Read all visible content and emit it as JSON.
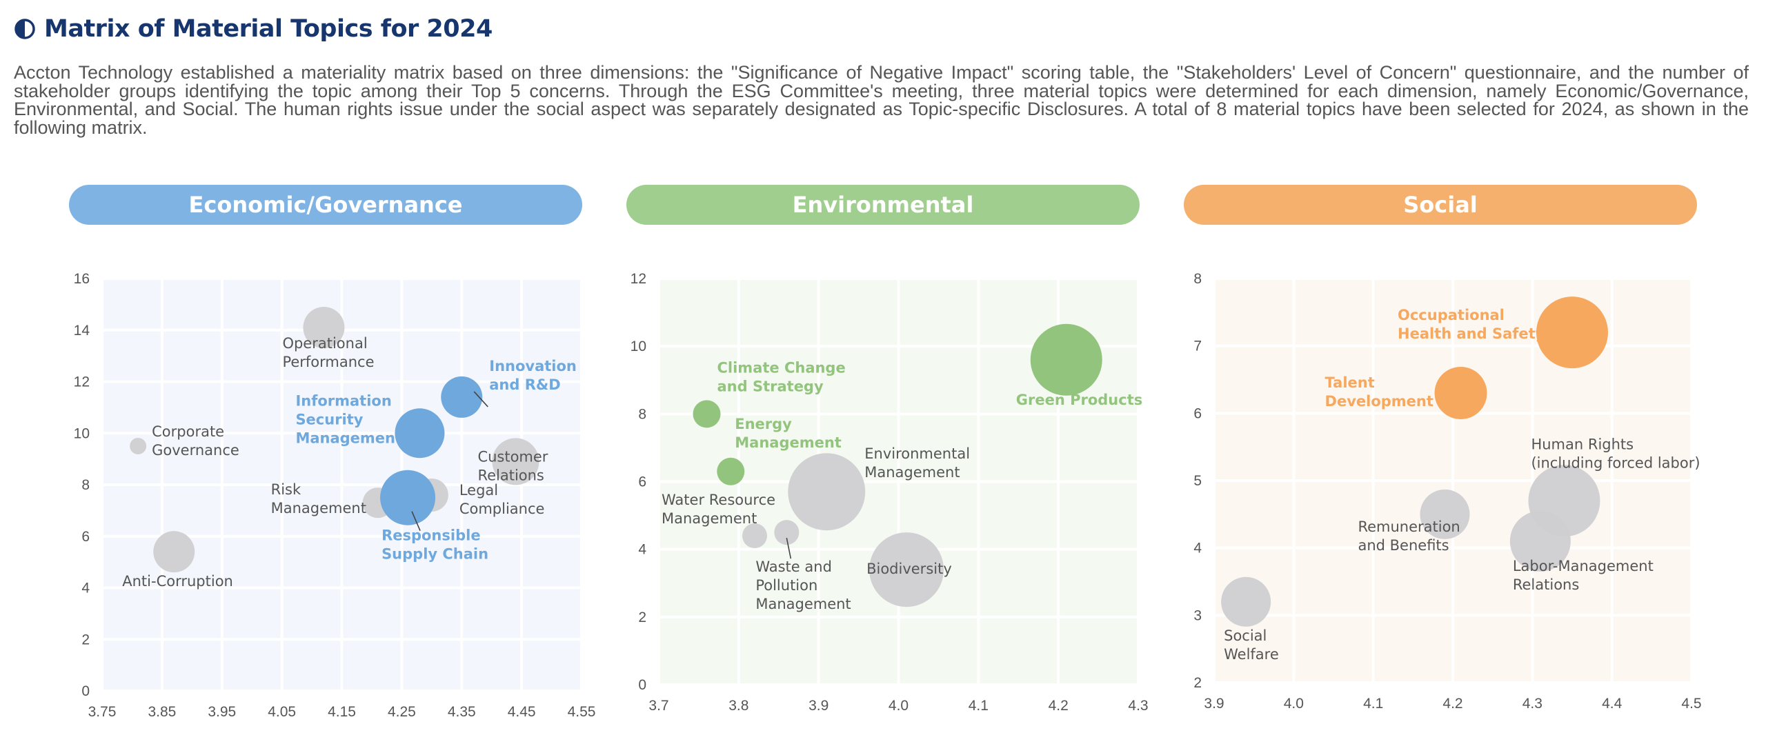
{
  "header": {
    "icon": "half-circle-icon",
    "title": "Matrix of Material Topics for 2024"
  },
  "intro": "Accton Technology established a materiality matrix based on three dimensions: the \"Significance of Negative Impact\" scoring table, the \"Stakeholders' Level of Concern\" questionnaire, and the number of stakeholder groups identifying the topic among their Top 5 concerns. Through the ESG Committee's meeting, three material topics were determined for each dimension, namely Economic/Governance, Environmental, and Social. The human rights issue under the social aspect was separately designated as Topic-specific Disclosures. A total of 8 material topics have been selected for 2024, as shown in the following matrix.",
  "colors": {
    "title": "#17366e",
    "economic": "#7fb3e3",
    "economic_strong": "#6fa8dc",
    "environmental": "#9fce8e",
    "environmental_strong": "#93c47d",
    "social": "#f5b06e",
    "social_strong": "#f6a85e",
    "grey_bubble": "#cfcfd1",
    "economic_bg": "#f3f6fc",
    "environmental_bg": "#f4f9f2",
    "social_bg": "#fdf7f1"
  },
  "chart_data": [
    {
      "type": "scatter",
      "title": "Economic/Governance",
      "xlim": [
        3.75,
        4.55
      ],
      "ylim": [
        0,
        16
      ],
      "xticks": [
        "3.75",
        "3.85",
        "3.95",
        "4.05",
        "4.15",
        "4.25",
        "4.35",
        "4.45",
        "4.55"
      ],
      "yticks": [
        "0",
        "2",
        "4",
        "6",
        "8",
        "10",
        "12",
        "14",
        "16"
      ],
      "grid": true,
      "points": [
        {
          "label": "Operational\nPerformance",
          "x": 4.12,
          "y": 14.1,
          "size": 30,
          "material": false
        },
        {
          "label": "Innovation\nand R&D",
          "x": 4.35,
          "y": 11.4,
          "size": 30,
          "material": true
        },
        {
          "label": "Information\nSecurity\nManagement",
          "x": 4.28,
          "y": 10.0,
          "size": 36,
          "material": true
        },
        {
          "label": "Corporate\nGovernance",
          "x": 3.81,
          "y": 9.5,
          "size": 12,
          "material": false
        },
        {
          "label": "Customer\nRelations",
          "x": 4.44,
          "y": 8.9,
          "size": 34,
          "material": false
        },
        {
          "label": "Legal\nCompliance",
          "x": 4.3,
          "y": 7.6,
          "size": 24,
          "material": false
        },
        {
          "label": "Risk\nManagement",
          "x": 4.21,
          "y": 7.3,
          "size": 22,
          "material": false
        },
        {
          "label": "Responsible\nSupply Chain",
          "x": 4.26,
          "y": 7.5,
          "size": 40,
          "material": true
        },
        {
          "label": "Anti-Corruption",
          "x": 3.87,
          "y": 5.4,
          "size": 30,
          "material": false
        }
      ]
    },
    {
      "type": "scatter",
      "title": "Environmental",
      "xlim": [
        3.7,
        4.3
      ],
      "ylim": [
        0,
        12
      ],
      "xticks": [
        "3.7",
        "3.8",
        "3.9",
        "4.0",
        "4.1",
        "4.2",
        "4.3"
      ],
      "yticks": [
        "0",
        "2",
        "4",
        "6",
        "8",
        "10",
        "12"
      ],
      "grid": true,
      "points": [
        {
          "label": "Green Products",
          "x": 4.21,
          "y": 9.6,
          "size": 52,
          "material": true
        },
        {
          "label": "Climate Change\nand Strategy",
          "x": 3.76,
          "y": 8.0,
          "size": 20,
          "material": true
        },
        {
          "label": "Energy\nManagement",
          "x": 3.79,
          "y": 6.3,
          "size": 20,
          "material": true
        },
        {
          "label": "Environmental\nManagement",
          "x": 3.91,
          "y": 5.7,
          "size": 56,
          "material": false
        },
        {
          "label": "Water Resource\nManagement",
          "x": 3.82,
          "y": 4.4,
          "size": 18,
          "material": false
        },
        {
          "label": "Waste and\nPollution\nManagement",
          "x": 3.86,
          "y": 4.5,
          "size": 18,
          "material": false
        },
        {
          "label": "Biodiversity",
          "x": 4.01,
          "y": 3.4,
          "size": 54,
          "material": false
        }
      ]
    },
    {
      "type": "scatter",
      "title": "Social",
      "xlim": [
        3.9,
        4.5
      ],
      "ylim": [
        2,
        8
      ],
      "xticks": [
        "3.9",
        "4.0",
        "4.1",
        "4.2",
        "4.3",
        "4.4",
        "4.5"
      ],
      "yticks": [
        "2",
        "3",
        "4",
        "5",
        "6",
        "7",
        "8"
      ],
      "grid": true,
      "points": [
        {
          "label": "Occupational\nHealth and Safety",
          "x": 4.35,
          "y": 7.2,
          "size": 52,
          "material": true
        },
        {
          "label": "Talent\nDevelopment",
          "x": 4.21,
          "y": 6.3,
          "size": 38,
          "material": true
        },
        {
          "label": "Human Rights\n(including forced labor)",
          "x": 4.34,
          "y": 4.7,
          "size": 52,
          "material": false
        },
        {
          "label": "Remuneration\nand Benefits",
          "x": 4.19,
          "y": 4.5,
          "size": 36,
          "material": false
        },
        {
          "label": "Labor-Management\nRelations",
          "x": 4.31,
          "y": 4.1,
          "size": 44,
          "material": false
        },
        {
          "label": "Social\nWelfare",
          "x": 3.94,
          "y": 3.2,
          "size": 36,
          "material": false
        }
      ]
    }
  ]
}
